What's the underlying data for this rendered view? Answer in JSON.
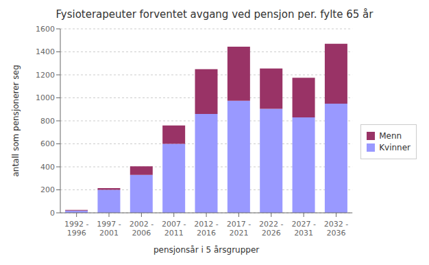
{
  "chart_data": {
    "type": "bar",
    "stacked": true,
    "title": "Fysioterapeuter forventet avgang ved pensjon per. fylte 65 år",
    "x_label": "pensjonsår i 5 årsgrupper",
    "y_label": "antall som pensjonerer seg",
    "categories": [
      "1992 -\n1996",
      "1997 -\n2001",
      "2002 -\n2006",
      "2007 -\n2011",
      "2012 -\n2016",
      "2017 -\n2021",
      "2022 -\n2026",
      "2027 -\n2031",
      "2032 -\n2036"
    ],
    "series": [
      {
        "name": "Kvinner",
        "color": "#9999ff",
        "values": [
          20,
          200,
          330,
          600,
          860,
          975,
          905,
          830,
          950
        ]
      },
      {
        "name": "Menn",
        "color": "#993366",
        "values": [
          5,
          15,
          75,
          160,
          390,
          470,
          350,
          345,
          520
        ]
      }
    ],
    "ylim": [
      0,
      1600
    ],
    "yticks": [
      0,
      200,
      400,
      600,
      800,
      1000,
      1200,
      1400,
      1600
    ],
    "grid": true,
    "legend": "right"
  }
}
